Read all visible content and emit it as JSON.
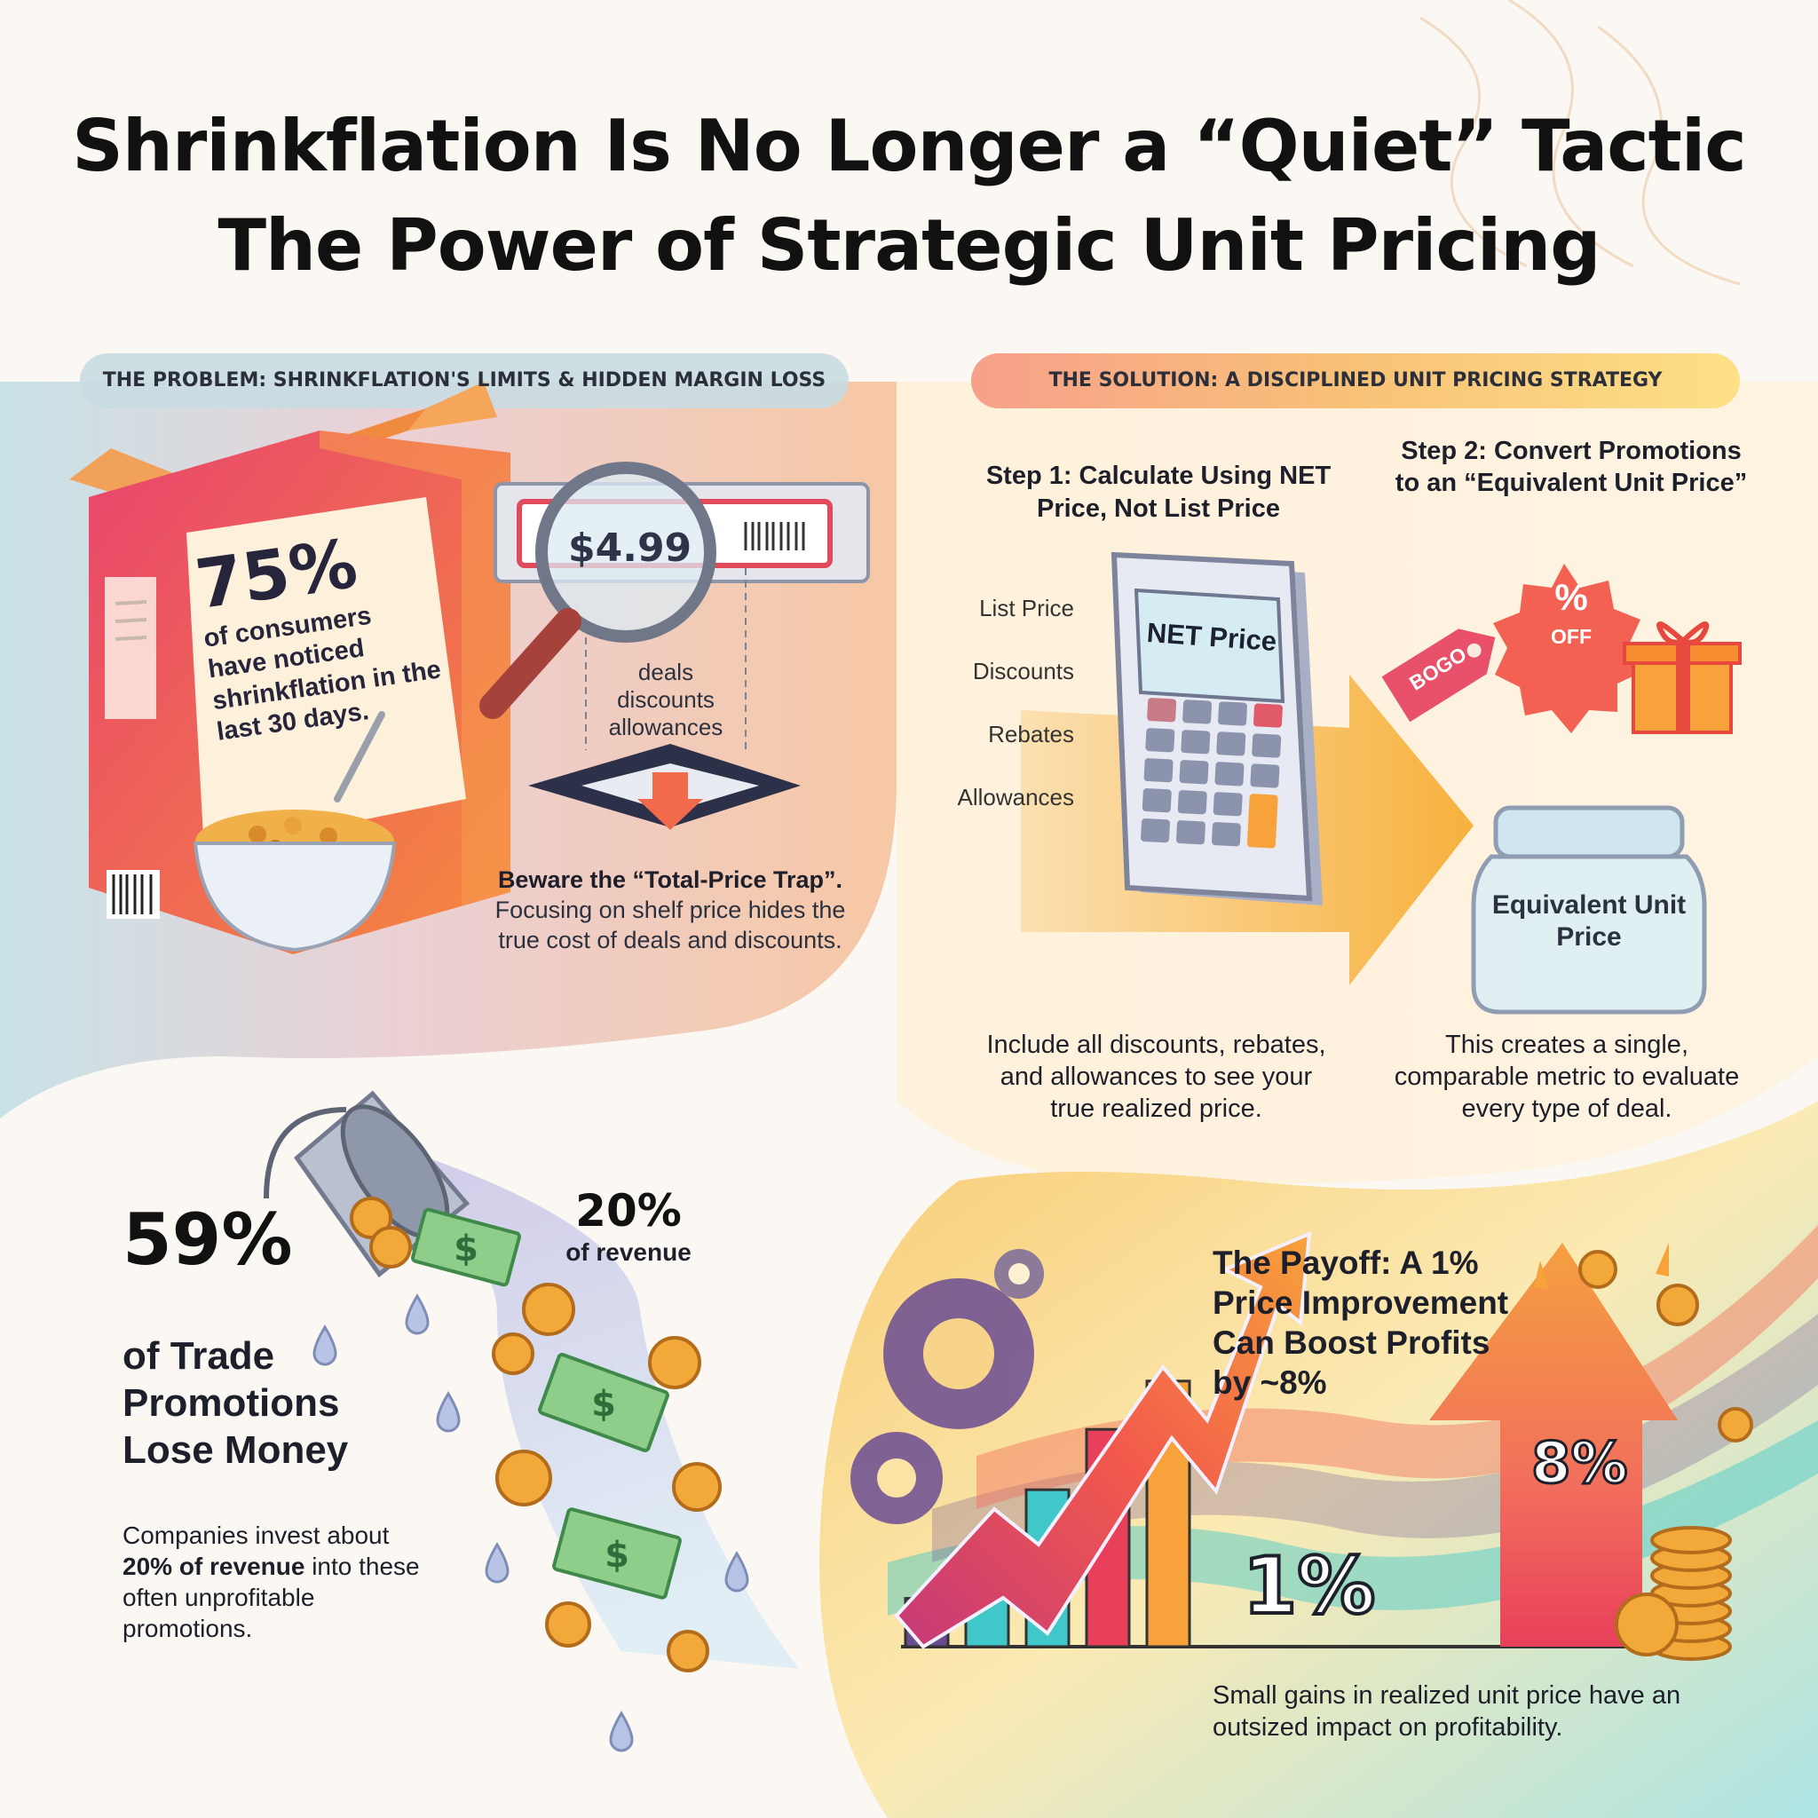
{
  "title": {
    "line1": "Shrinkflation Is No Longer a “Quiet” Tactic",
    "line2": "The Power of Strategic Unit Pricing"
  },
  "problem": {
    "header": "THE PROBLEM: SHRINKFLATION'S LIMITS & HIDDEN MARGIN LOSS",
    "stat_value": "75%",
    "stat_text": "of consumers have noticed shrinkflation in the last 30 days.",
    "price_tag": "$4.99",
    "hidden_items": [
      "deals",
      "discounts",
      "allowances"
    ],
    "trap_title": "Beware the “Total-Price Trap”.",
    "trap_text": "Focusing on shelf price hides the true cost of deals and discounts."
  },
  "solution": {
    "header": "THE SOLUTION: A DISCIPLINED UNIT PRICING STRATEGY",
    "step1": {
      "title": "Step 1: Calculate Using NET Price, Not List Price",
      "inputs": [
        "List Price",
        "Discounts",
        "Rebates",
        "Allowances"
      ],
      "calculator_label": "NET Price",
      "text": "Include all discounts, rebates, and allowances to see your true realized price."
    },
    "step2": {
      "title": "Step 2: Convert Promotions to an “Equivalent Unit Price”",
      "tag_label": "BOGO",
      "badge_label_1": "%",
      "badge_label_2": "OFF",
      "jar_label": "Equivalent Unit Price",
      "text": "This creates a single, comparable metric to evaluate every type of deal."
    }
  },
  "promotions": {
    "stat_value": "59%",
    "stat_text": "of Trade Promotions Lose Money",
    "revenue_value": "20%",
    "revenue_label": "of revenue",
    "note_before": "Companies invest about ",
    "note_bold": "20% of revenue",
    "note_after": " into these often unprofitable promotions."
  },
  "payoff": {
    "title": "The Payoff: A 1% Price Improvement Can Boost Profits by ~8%",
    "small_value": "1%",
    "big_value": "8%",
    "text": "Small gains in realized unit price have an outsized impact on profitability.",
    "bar_levels": [
      0.16,
      0.34,
      0.52,
      0.72,
      0.88
    ]
  },
  "colors": {
    "accent_orange": "#f7a23b",
    "accent_red": "#e8405a",
    "accent_purple": "#6a4c93",
    "teal": "#3fc7c9",
    "money_green": "#8fce8a"
  },
  "icons": [
    "cereal-box-icon",
    "magnifier-icon",
    "calculator-icon",
    "tag-icon",
    "percent-badge-icon",
    "gift-icon",
    "jar-icon",
    "bucket-icon",
    "coin-icon",
    "banknote-icon",
    "gear-icon",
    "growth-arrow-icon",
    "coin-stack-icon"
  ]
}
